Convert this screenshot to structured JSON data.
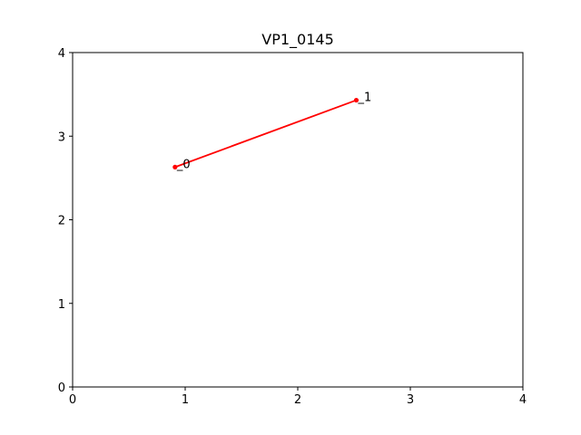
{
  "chart_data": {
    "type": "line",
    "title": "VP1_0145",
    "xlabel": "",
    "ylabel": "",
    "xlim": [
      0,
      4
    ],
    "ylim": [
      0,
      4
    ],
    "xticks": [
      "0",
      "1",
      "2",
      "3",
      "4"
    ],
    "yticks": [
      "0",
      "1",
      "2",
      "3",
      "4"
    ],
    "grid": false,
    "series": [
      {
        "color": "#ff0000",
        "marker": "point",
        "points": [
          {
            "x": 0.91,
            "y": 2.63,
            "label": "_0"
          },
          {
            "x": 2.52,
            "y": 3.43,
            "label": "_1"
          }
        ]
      }
    ]
  }
}
